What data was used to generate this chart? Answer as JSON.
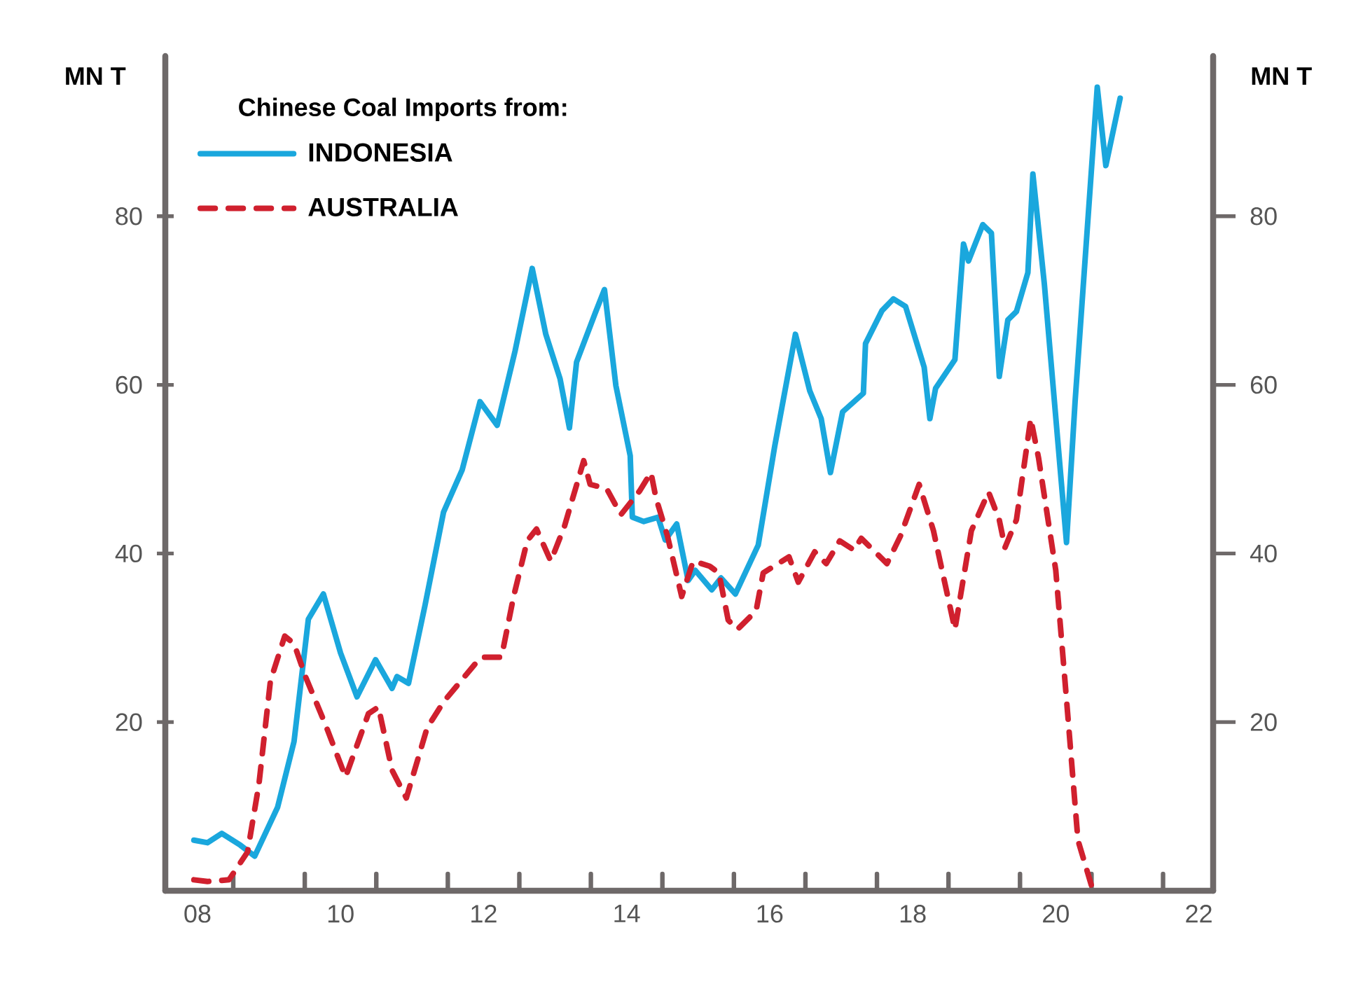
{
  "chart_data": {
    "type": "line",
    "legend_title": "Chinese Coal Imports from:",
    "ylabel": "MN T",
    "y2label": "MN T",
    "xlim": [
      7.55,
      22.2
    ],
    "xticks": [
      {
        "value": 8,
        "label": "08"
      },
      {
        "value": 8.5,
        "label": null
      },
      {
        "value": 9.5,
        "label": null
      },
      {
        "value": 10,
        "label": "10"
      },
      {
        "value": 10.5,
        "label": null
      },
      {
        "value": 11.5,
        "label": null
      },
      {
        "value": 12,
        "label": "12"
      },
      {
        "value": 12.5,
        "label": null
      },
      {
        "value": 13.5,
        "label": null
      },
      {
        "value": 14,
        "label": "14"
      },
      {
        "value": 14.5,
        "label": null
      },
      {
        "value": 15.5,
        "label": null
      },
      {
        "value": 16,
        "label": "16"
      },
      {
        "value": 16.5,
        "label": null
      },
      {
        "value": 17.5,
        "label": null
      },
      {
        "value": 18,
        "label": "18"
      },
      {
        "value": 18.5,
        "label": null
      },
      {
        "value": 19.5,
        "label": null
      },
      {
        "value": 20,
        "label": "20"
      },
      {
        "value": 20.5,
        "label": null
      },
      {
        "value": 21.5,
        "label": null
      },
      {
        "value": 22,
        "label": "22"
      }
    ],
    "ylim": [
      0,
      99
    ],
    "yticks": [
      20,
      40,
      60,
      80
    ],
    "y2lim": [
      0,
      99
    ],
    "y2ticks": [
      20,
      40,
      60,
      80
    ],
    "legend": "top left",
    "marker": "none",
    "series": [
      {
        "name": "INDONESIA",
        "color": "#1aa7dd",
        "line_style": "solid",
        "x": [
          7.95,
          8.14,
          8.34,
          8.6,
          8.8,
          9.12,
          9.35,
          9.55,
          9.76,
          10.0,
          10.23,
          10.49,
          10.72,
          10.79,
          10.95,
          11.18,
          11.44,
          11.7,
          11.95,
          12.19,
          12.44,
          12.68,
          12.87,
          13.07,
          13.2,
          13.3,
          13.56,
          13.69,
          13.85,
          14.05,
          14.08,
          14.24,
          14.44,
          14.54,
          14.7,
          14.86,
          14.96,
          15.19,
          15.32,
          15.52,
          15.84,
          16.07,
          16.36,
          16.56,
          16.72,
          16.85,
          17.02,
          17.31,
          17.34,
          17.57,
          17.73,
          17.9,
          18.16,
          18.24,
          18.32,
          18.59,
          18.71,
          18.78,
          18.98,
          19.1,
          19.21,
          19.33,
          19.45,
          19.61,
          19.68,
          19.84,
          20.15,
          20.27,
          20.58,
          20.7,
          20.9
        ],
        "values": [
          6.0,
          5.7,
          6.8,
          5.4,
          4.1,
          9.9,
          17.7,
          32.2,
          35.2,
          28.2,
          23,
          27.4,
          24,
          25.4,
          24.6,
          33.8,
          44.9,
          49.9,
          58,
          55.2,
          64,
          73.8,
          66,
          60.7,
          54.9,
          62.7,
          68.5,
          71.3,
          59.9,
          51.6,
          44.3,
          43.8,
          44.3,
          41.6,
          43.5,
          36.8,
          38,
          35.7,
          37.1,
          35.2,
          41,
          52.7,
          66,
          59.3,
          56,
          49.6,
          56.8,
          59,
          64.9,
          68.8,
          70.2,
          69.3,
          62.1,
          56,
          59.6,
          63,
          76.7,
          74.7,
          79,
          78,
          61,
          67.7,
          68.7,
          73.3,
          85,
          72,
          41.3,
          58,
          95.3,
          86,
          94
        ]
      },
      {
        "name": "AUSTRALIA",
        "color": "#d0202e",
        "line_style": "dashed",
        "x": [
          7.95,
          8.14,
          8.44,
          8.7,
          8.86,
          9.02,
          9.22,
          9.35,
          9.51,
          9.78,
          10.07,
          10.39,
          10.53,
          10.72,
          10.92,
          11.21,
          11.44,
          11.96,
          12.25,
          12.42,
          12.61,
          12.74,
          12.94,
          13.13,
          13.4,
          13.49,
          13.72,
          13.92,
          14.18,
          14.34,
          14.41,
          14.57,
          14.77,
          14.93,
          15.16,
          15.29,
          15.42,
          15.55,
          15.81,
          15.91,
          16.27,
          16.4,
          16.63,
          16.79,
          16.98,
          17.18,
          17.28,
          17.64,
          17.83,
          18.09,
          18.29,
          18.59,
          18.82,
          19.06,
          19.21,
          19.29,
          19.45,
          19.65,
          19.76,
          20.0,
          20.15,
          20.31,
          20.51
        ],
        "values": [
          1.3,
          1.1,
          1.3,
          4.6,
          12.7,
          24.9,
          30.2,
          29.3,
          25.4,
          19.9,
          13.5,
          21,
          21.8,
          14.3,
          11,
          19.3,
          22.4,
          27.7,
          27.7,
          34.9,
          41.5,
          42.9,
          39.1,
          43.2,
          51,
          48.2,
          47.7,
          44.6,
          47.4,
          49.6,
          46.6,
          42.1,
          34.9,
          39.1,
          38.5,
          37.7,
          32.1,
          31,
          33.2,
          37.7,
          39.6,
          36.6,
          40.2,
          38.8,
          41.5,
          40.4,
          41.8,
          38.8,
          42.1,
          48.2,
          42.7,
          31,
          42.7,
          47.3,
          44,
          40.7,
          44,
          56,
          51.3,
          38,
          22.7,
          6,
          0.3
        ]
      }
    ]
  }
}
